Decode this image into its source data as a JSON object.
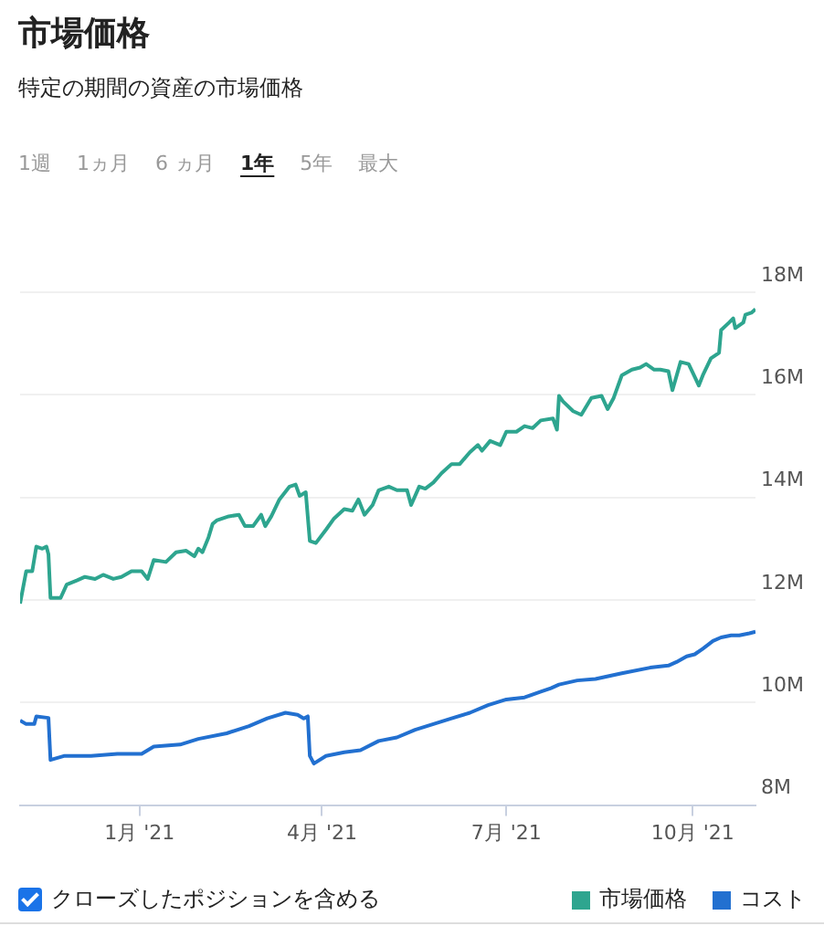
{
  "chart_data": {
    "type": "line",
    "title": "市場価格",
    "subtitle": "特定の期間の資産の市場価格",
    "annotations": [
      "1週",
      "1ヵ月",
      "6 ヵ月",
      "1年",
      "5年",
      "最大",
      "クローズしたポジションを含める"
    ],
    "xlim": [
      "2020-11-03",
      "2021-11-01"
    ],
    "xticks": [
      {
        "value": "2021-01-01",
        "label": "1月 '21"
      },
      {
        "value": "2021-04-01",
        "label": "4月 '21"
      },
      {
        "value": "2021-07-01",
        "label": "7月 '21"
      },
      {
        "value": "2021-10-01",
        "label": "10月 '21"
      }
    ],
    "ylim": [
      8000000,
      18000000
    ],
    "yticks": [
      {
        "value": 8000000,
        "label": "8M"
      },
      {
        "value": 10000000,
        "label": "10M"
      },
      {
        "value": 12000000,
        "label": "12M"
      },
      {
        "value": 14000000,
        "label": "14M"
      },
      {
        "value": 16000000,
        "label": "16M"
      },
      {
        "value": 18000000,
        "label": "18M"
      }
    ],
    "grid": "y",
    "legend": "bottom right",
    "marker": "none",
    "line_style": "solid",
    "series": [
      {
        "name": "市場価格",
        "color": "#2ea58f",
        "x": [
          "2020-11-03",
          "2020-11-06",
          "2020-11-09",
          "2020-11-11",
          "2020-11-14",
          "2020-11-16",
          "2020-11-17",
          "2020-11-18",
          "2020-11-20",
          "2020-11-23",
          "2020-11-26",
          "2020-12-01",
          "2020-12-05",
          "2020-12-10",
          "2020-12-14",
          "2020-12-19",
          "2020-12-23",
          "2020-12-28",
          "2021-01-02",
          "2021-01-05",
          "2021-01-08",
          "2021-01-14",
          "2021-01-19",
          "2021-01-24",
          "2021-01-28",
          "2021-01-30",
          "2021-02-01",
          "2021-02-04",
          "2021-02-06",
          "2021-02-08",
          "2021-02-14",
          "2021-02-19",
          "2021-02-22",
          "2021-02-26",
          "2021-03-02",
          "2021-03-04",
          "2021-03-07",
          "2021-03-11",
          "2021-03-16",
          "2021-03-19",
          "2021-03-21",
          "2021-03-24",
          "2021-03-26",
          "2021-03-29",
          "2021-04-03",
          "2021-04-07",
          "2021-04-12",
          "2021-04-16",
          "2021-04-19",
          "2021-04-22",
          "2021-04-26",
          "2021-04-29",
          "2021-05-04",
          "2021-05-08",
          "2021-05-13",
          "2021-05-15",
          "2021-05-19",
          "2021-05-22",
          "2021-05-26",
          "2021-05-30",
          "2021-06-04",
          "2021-06-08",
          "2021-06-13",
          "2021-06-17",
          "2021-06-19",
          "2021-06-23",
          "2021-06-28",
          "2021-07-01",
          "2021-07-06",
          "2021-07-10",
          "2021-07-14",
          "2021-07-18",
          "2021-07-24",
          "2021-07-26",
          "2021-07-27",
          "2021-07-29",
          "2021-08-03",
          "2021-08-07",
          "2021-08-12",
          "2021-08-17",
          "2021-08-20",
          "2021-08-23",
          "2021-08-27",
          "2021-09-01",
          "2021-09-05",
          "2021-09-08",
          "2021-09-12",
          "2021-09-15",
          "2021-09-19",
          "2021-09-21",
          "2021-09-25",
          "2021-09-29",
          "2021-10-02",
          "2021-10-04",
          "2021-10-06",
          "2021-10-10",
          "2021-10-14",
          "2021-10-15",
          "2021-10-19",
          "2021-10-21",
          "2021-10-22",
          "2021-10-26",
          "2021-10-27",
          "2021-10-30",
          "2021-11-01"
        ],
        "values": [
          11930000,
          12560000,
          12560000,
          13040000,
          13000000,
          13040000,
          12890000,
          12040000,
          12040000,
          12040000,
          12300000,
          12380000,
          12450000,
          12410000,
          12490000,
          12410000,
          12450000,
          12560000,
          12560000,
          12410000,
          12780000,
          12740000,
          12930000,
          12960000,
          12850000,
          13000000,
          12930000,
          13220000,
          13480000,
          13550000,
          13630000,
          13660000,
          13440000,
          13440000,
          13660000,
          13440000,
          13630000,
          13960000,
          14210000,
          14250000,
          14030000,
          14100000,
          13150000,
          13110000,
          13370000,
          13590000,
          13770000,
          13740000,
          13960000,
          13660000,
          13850000,
          14140000,
          14210000,
          14140000,
          14140000,
          13850000,
          14210000,
          14170000,
          14290000,
          14470000,
          14650000,
          14650000,
          14880000,
          15020000,
          14910000,
          15100000,
          15020000,
          15280000,
          15280000,
          15390000,
          15350000,
          15500000,
          15540000,
          15320000,
          15980000,
          15870000,
          15680000,
          15610000,
          15940000,
          15980000,
          15720000,
          15940000,
          16380000,
          16490000,
          16530000,
          16600000,
          16490000,
          16490000,
          16460000,
          16090000,
          16640000,
          16600000,
          16350000,
          16180000,
          16380000,
          16710000,
          16820000,
          17260000,
          17410000,
          17490000,
          17300000,
          17410000,
          17560000,
          17600000,
          17670000
        ]
      },
      {
        "name": "コスト",
        "color": "#2270d0",
        "x": [
          "2020-11-03",
          "2020-11-06",
          "2020-11-10",
          "2020-11-11",
          "2020-11-17",
          "2020-11-18",
          "2020-11-25",
          "2020-12-08",
          "2020-12-21",
          "2021-01-02",
          "2021-01-08",
          "2021-01-21",
          "2021-01-30",
          "2021-02-13",
          "2021-02-24",
          "2021-03-05",
          "2021-03-14",
          "2021-03-20",
          "2021-03-23",
          "2021-03-25",
          "2021-03-26",
          "2021-03-28",
          "2021-04-03",
          "2021-04-12",
          "2021-04-20",
          "2021-04-29",
          "2021-05-08",
          "2021-05-17",
          "2021-05-26",
          "2021-06-04",
          "2021-06-13",
          "2021-06-22",
          "2021-07-01",
          "2021-07-10",
          "2021-07-18",
          "2021-07-23",
          "2021-07-27",
          "2021-08-05",
          "2021-08-14",
          "2021-08-27",
          "2021-09-10",
          "2021-09-19",
          "2021-09-23",
          "2021-09-28",
          "2021-10-02",
          "2021-10-06",
          "2021-10-11",
          "2021-10-15",
          "2021-10-20",
          "2021-10-24",
          "2021-10-29",
          "2021-11-01"
        ],
        "values": [
          9650000,
          9580000,
          9580000,
          9730000,
          9700000,
          8880000,
          8960000,
          8960000,
          9000000,
          9000000,
          9140000,
          9180000,
          9290000,
          9400000,
          9540000,
          9690000,
          9800000,
          9760000,
          9690000,
          9730000,
          8960000,
          8810000,
          8960000,
          9030000,
          9070000,
          9250000,
          9320000,
          9470000,
          9580000,
          9690000,
          9800000,
          9950000,
          10060000,
          10100000,
          10210000,
          10280000,
          10350000,
          10430000,
          10460000,
          10570000,
          10680000,
          10720000,
          10790000,
          10900000,
          10940000,
          11050000,
          11200000,
          11270000,
          11310000,
          11310000,
          11350000,
          11380000
        ]
      }
    ]
  }
}
